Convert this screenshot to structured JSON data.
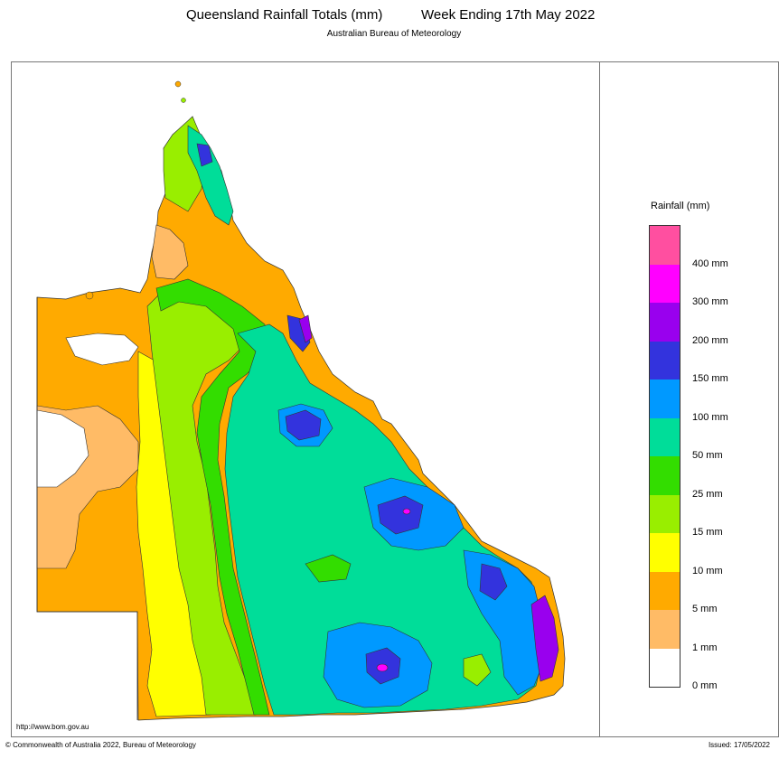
{
  "header": {
    "title": "Queensland Rainfall Totals (mm)",
    "period": "Week Ending 17th May 2022",
    "subtitle": "Australian Bureau of Meteorology"
  },
  "legend": {
    "title": "Rainfall (mm)",
    "items": [
      {
        "label": "",
        "color": "#ff4fa0"
      },
      {
        "label": "400 mm",
        "color": "#ff00ff"
      },
      {
        "label": "300 mm",
        "color": "#9900ee"
      },
      {
        "label": "200 mm",
        "color": "#3333dd"
      },
      {
        "label": "150 mm",
        "color": "#0099ff"
      },
      {
        "label": "100 mm",
        "color": "#00dd99"
      },
      {
        "label": "50 mm",
        "color": "#33dd00"
      },
      {
        "label": "25 mm",
        "color": "#99ee00"
      },
      {
        "label": "15 mm",
        "color": "#ffff00"
      },
      {
        "label": "10 mm",
        "color": "#ffaa00"
      },
      {
        "label": "5 mm",
        "color": "#ffbb66"
      },
      {
        "label": "1 mm",
        "color": "#ffffff"
      },
      {
        "label": "0 mm",
        "color": ""
      }
    ]
  },
  "footer": {
    "url": "http://www.bom.gov.au",
    "copyright": "© Commonwealth of Australia 2022, Bureau of Meteorology",
    "issued": "Issued: 17/05/2022"
  }
}
